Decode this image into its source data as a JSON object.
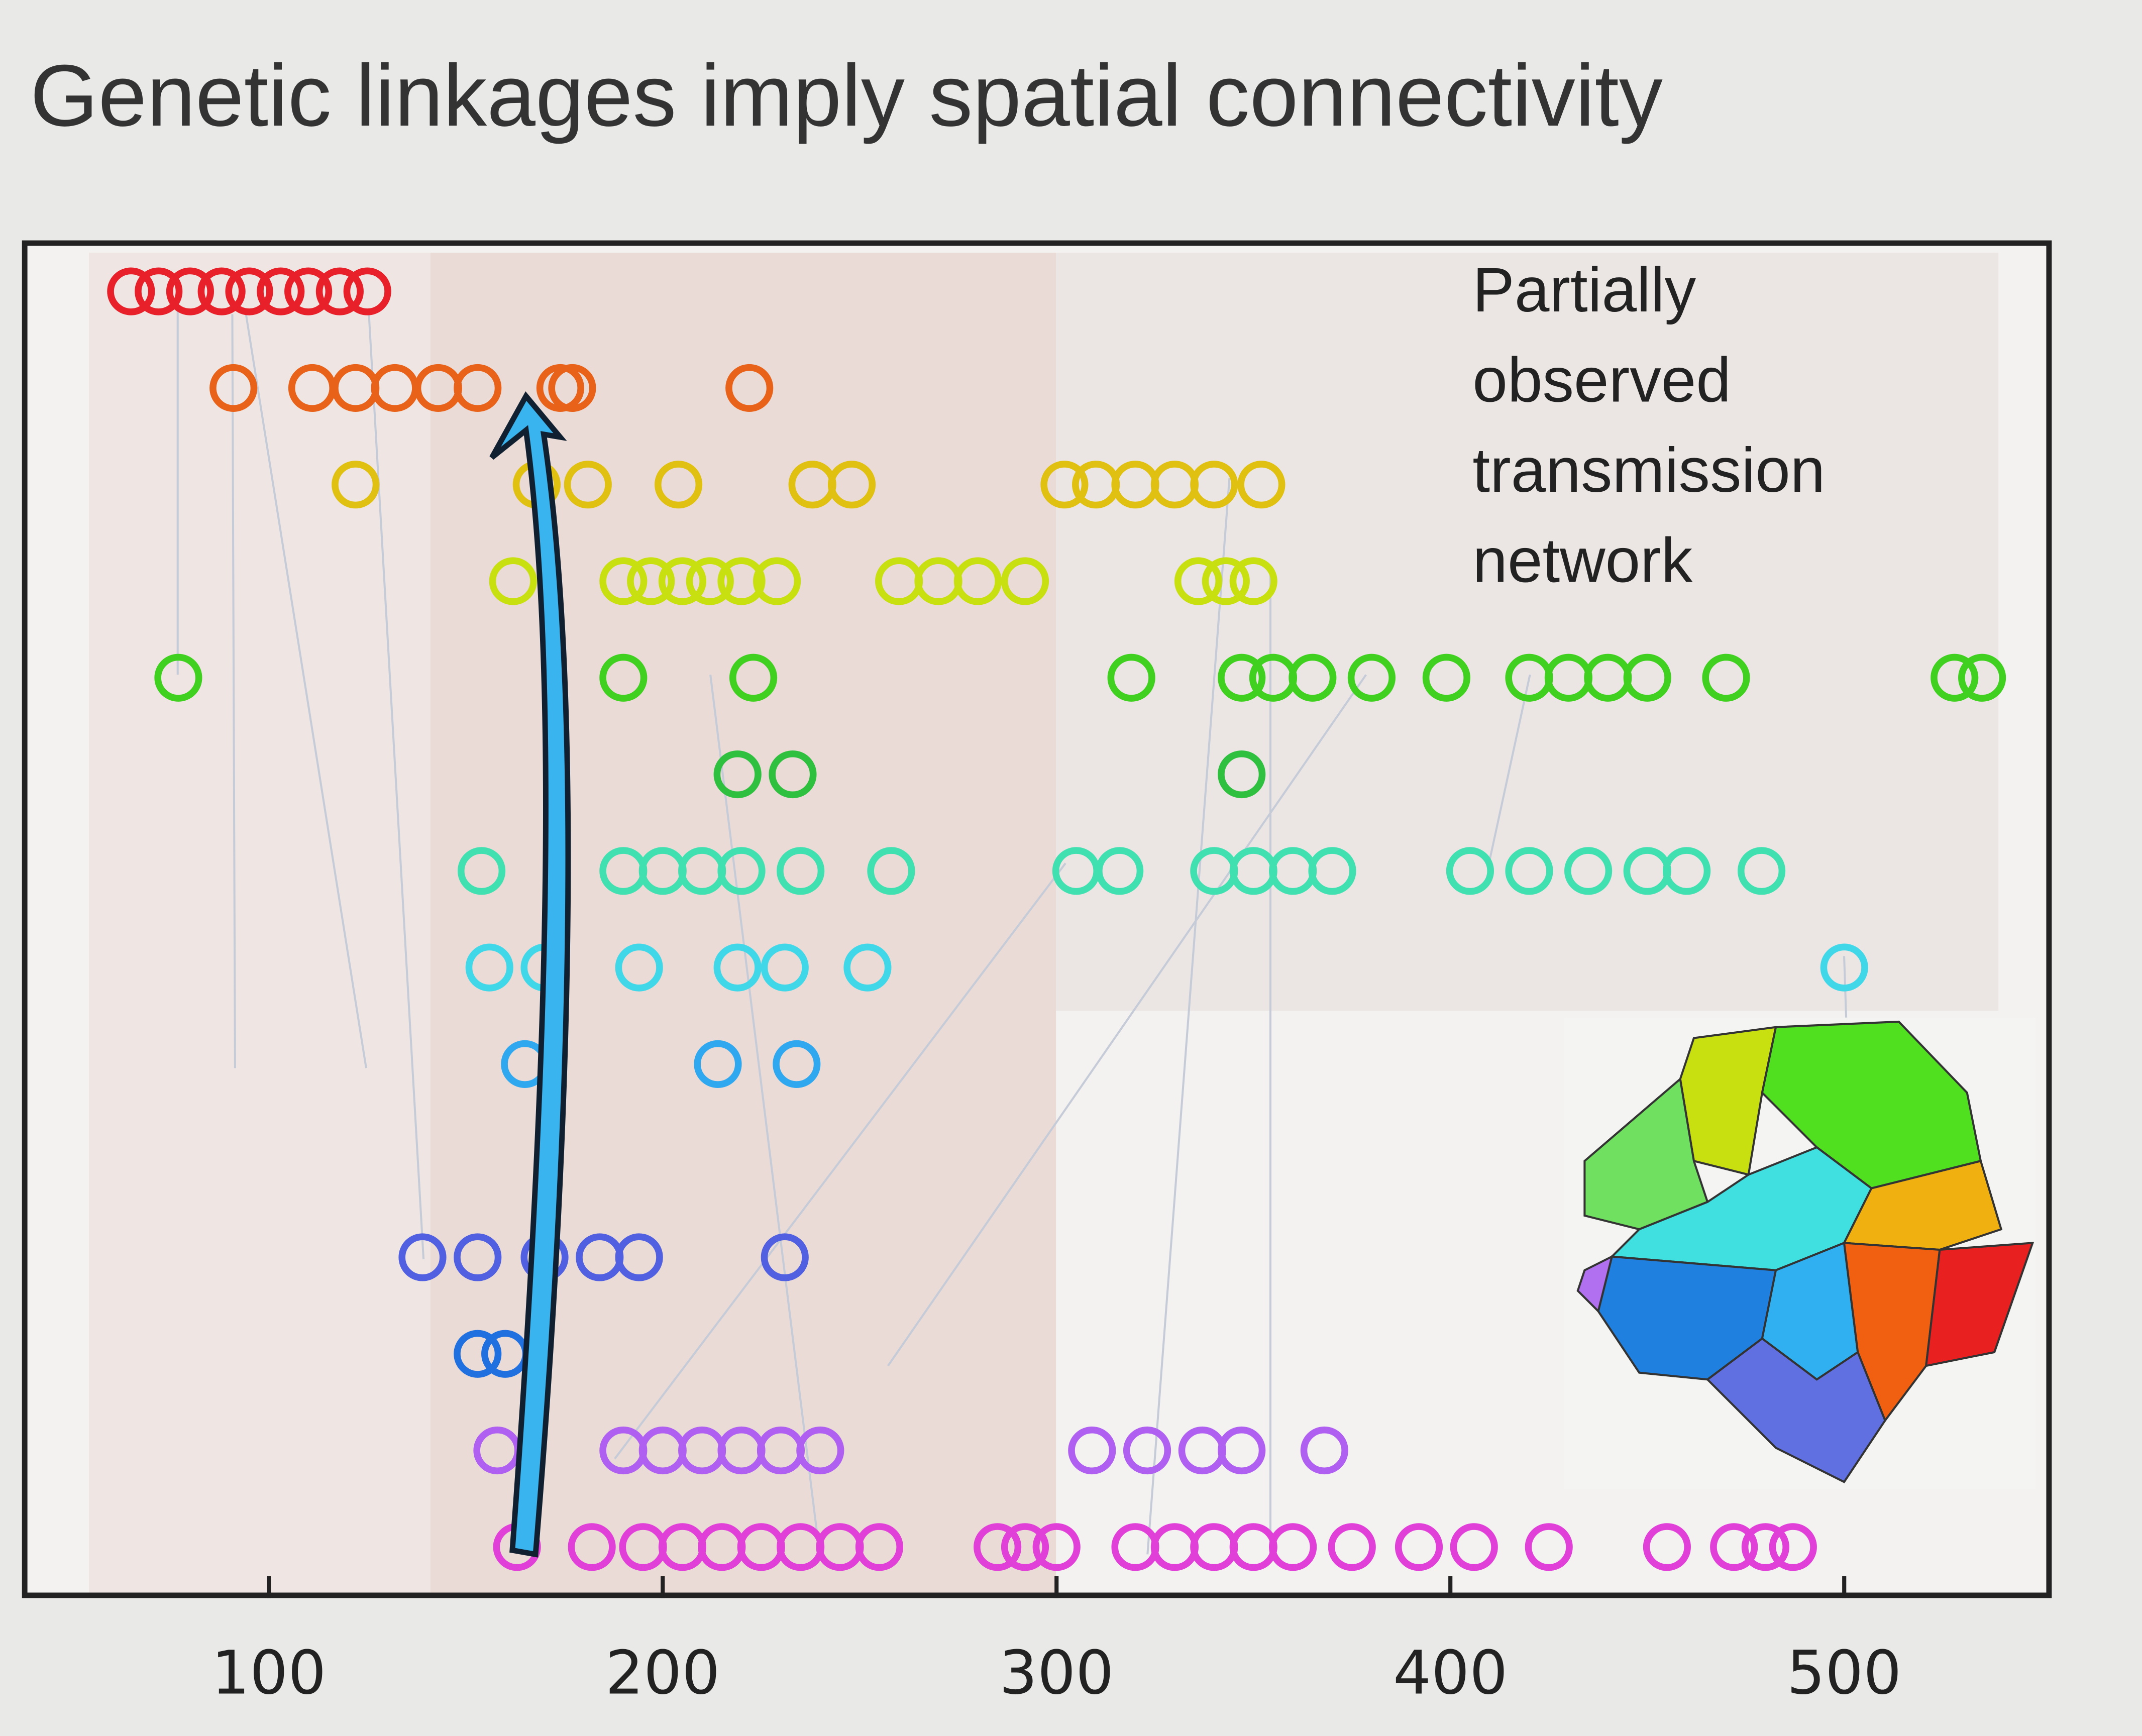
{
  "chart_data": {
    "type": "scatter",
    "title": "Genetic linkages imply spatial connectivity",
    "annotation": [
      "Partially",
      "observed",
      "transmission",
      "network"
    ],
    "xlim": [
      38,
      552
    ],
    "xticks": [
      100,
      200,
      300,
      400,
      500
    ],
    "ylim": [
      0.5,
      14.5
    ],
    "series": [
      {
        "color": "#e8202a",
        "x": [
          65,
          72,
          80,
          88,
          95,
          103,
          110,
          118,
          125
        ],
        "values": [
          14,
          14,
          14,
          14,
          14,
          14,
          14,
          14,
          14
        ]
      },
      {
        "color": "#e8621a",
        "x": [
          91,
          111,
          122,
          132,
          143,
          153,
          174,
          177,
          222
        ],
        "values": [
          13,
          13,
          13,
          13,
          13,
          13,
          13,
          13,
          13
        ]
      },
      {
        "color": "#e0c010",
        "x": [
          122,
          168,
          181,
          204,
          238,
          248,
          302,
          310,
          320,
          330,
          340,
          352
        ],
        "values": [
          12,
          12,
          12,
          12,
          12,
          12,
          12,
          12,
          12,
          12,
          12,
          12
        ]
      },
      {
        "color": "#c8e010",
        "x": [
          162,
          190,
          197,
          205,
          212,
          220,
          229,
          260,
          270,
          280,
          292,
          336,
          343,
          350
        ],
        "values": [
          11,
          11,
          11,
          11,
          11,
          11,
          11,
          11,
          11,
          11,
          11,
          11,
          11,
          11
        ]
      },
      {
        "color": "#40d020",
        "x": [
          77,
          190,
          223,
          319,
          347,
          355,
          365,
          380,
          399,
          420,
          430,
          440,
          450,
          470,
          528,
          535
        ],
        "values": [
          10,
          10,
          10,
          10,
          10,
          10,
          10,
          10,
          10,
          10,
          10,
          10,
          10,
          10,
          10,
          10
        ]
      },
      {
        "color": "#30c040",
        "x": [
          219,
          233,
          347
        ],
        "values": [
          9,
          9,
          9
        ]
      },
      {
        "color": "#40e0b0",
        "x": [
          154,
          190,
          200,
          210,
          220,
          235,
          258,
          305,
          316,
          340,
          350,
          360,
          370,
          405,
          420,
          435,
          450,
          460,
          479
        ],
        "values": [
          8,
          8,
          8,
          8,
          8,
          8,
          8,
          8,
          8,
          8,
          8,
          8,
          8,
          8,
          8,
          8,
          8,
          8,
          8
        ]
      },
      {
        "color": "#40d8e8",
        "x": [
          156,
          170,
          194,
          219,
          231,
          252,
          500
        ],
        "values": [
          7,
          7,
          7,
          7,
          7,
          7,
          7
        ]
      },
      {
        "color": "#30a8f0",
        "x": [
          165,
          214,
          234
        ],
        "values": [
          6,
          6,
          6
        ]
      },
      {
        "color": "#5060e0",
        "x": [
          139,
          153,
          170,
          184,
          194,
          231
        ],
        "values": [
          4,
          4,
          4,
          4,
          4,
          4
        ]
      },
      {
        "color": "#2070e0",
        "x": [
          153,
          160
        ],
        "values": [
          3,
          3
        ]
      },
      {
        "color": "#b060f0",
        "x": [
          158,
          190,
          200,
          210,
          220,
          230,
          240,
          309,
          323,
          337,
          347,
          368
        ],
        "values": [
          2,
          2,
          2,
          2,
          2,
          2,
          2,
          2,
          2,
          2,
          2,
          2
        ]
      },
      {
        "color": "#e040d8",
        "x": [
          163,
          182,
          195,
          205,
          215,
          225,
          235,
          245,
          255,
          285,
          292,
          300,
          320,
          330,
          340,
          350,
          360,
          375,
          392,
          406,
          425,
          455,
          472,
          480,
          487
        ],
        "values": [
          1,
          1,
          1,
          1,
          1,
          1,
          1,
          1,
          1,
          1,
          1,
          1,
          1,
          1,
          1,
          1,
          1,
          1,
          1,
          1,
          1,
          1,
          1,
          1,
          1
        ]
      }
    ]
  }
}
